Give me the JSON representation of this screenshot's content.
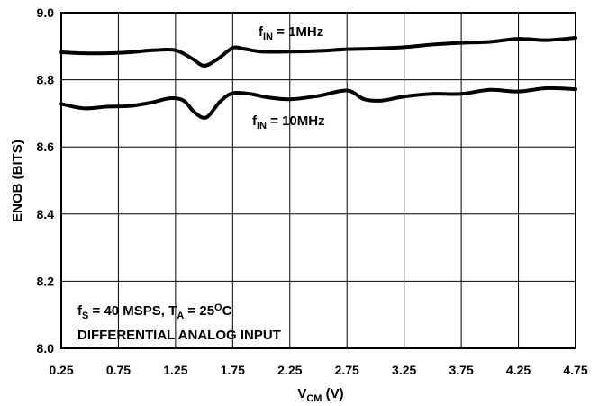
{
  "chart_data": {
    "type": "line",
    "xlabel": {
      "main": "V",
      "sub": "CM",
      "rest": " (V)"
    },
    "ylabel": "ENOB (BITS)",
    "xlim": [
      0.25,
      4.75
    ],
    "ylim": [
      8.0,
      9.0
    ],
    "x_ticks": [
      "0.25",
      "0.75",
      "1.25",
      "1.75",
      "2.25",
      "2.75",
      "3.25",
      "3.75",
      "4.25",
      "4.75"
    ],
    "y_ticks": [
      "8.0",
      "8.2",
      "8.4",
      "8.6",
      "8.8",
      "9.0"
    ],
    "grid": true,
    "series": [
      {
        "name": {
          "main": "f",
          "sub": "IN",
          "rest": " = 1MHz"
        },
        "color": "#000000",
        "x": [
          0.25,
          0.45,
          0.65,
          0.85,
          1.05,
          1.25,
          1.4,
          1.5,
          1.62,
          1.75,
          1.85,
          2.0,
          2.25,
          2.5,
          2.75,
          3.0,
          3.25,
          3.5,
          3.75,
          4.0,
          4.25,
          4.5,
          4.75
        ],
        "values": [
          8.882,
          8.879,
          8.879,
          8.882,
          8.888,
          8.888,
          8.862,
          8.842,
          8.862,
          8.895,
          8.892,
          8.884,
          8.884,
          8.886,
          8.891,
          8.893,
          8.897,
          8.905,
          8.91,
          8.913,
          8.922,
          8.918,
          8.925
        ]
      },
      {
        "name": {
          "main": "f",
          "sub": "IN",
          "rest": " = 10MHz"
        },
        "color": "#000000",
        "x": [
          0.25,
          0.45,
          0.65,
          0.85,
          1.05,
          1.2,
          1.32,
          1.42,
          1.52,
          1.64,
          1.75,
          1.9,
          2.05,
          2.25,
          2.5,
          2.75,
          2.9,
          3.05,
          3.25,
          3.5,
          3.75,
          4.0,
          4.25,
          4.5,
          4.75
        ],
        "values": [
          8.728,
          8.715,
          8.72,
          8.722,
          8.733,
          8.745,
          8.738,
          8.702,
          8.688,
          8.735,
          8.76,
          8.758,
          8.748,
          8.742,
          8.752,
          8.768,
          8.742,
          8.738,
          8.75,
          8.758,
          8.758,
          8.77,
          8.765,
          8.775,
          8.772
        ]
      }
    ],
    "annotations": [
      {
        "main": "f",
        "sub": "S",
        "mid": " = 40 MSPS, T",
        "sub2": "A",
        "mid2": " = 25",
        "sup": "O",
        "rest": "C"
      },
      {
        "text": "DIFFERENTIAL ANALOG INPUT"
      }
    ]
  }
}
